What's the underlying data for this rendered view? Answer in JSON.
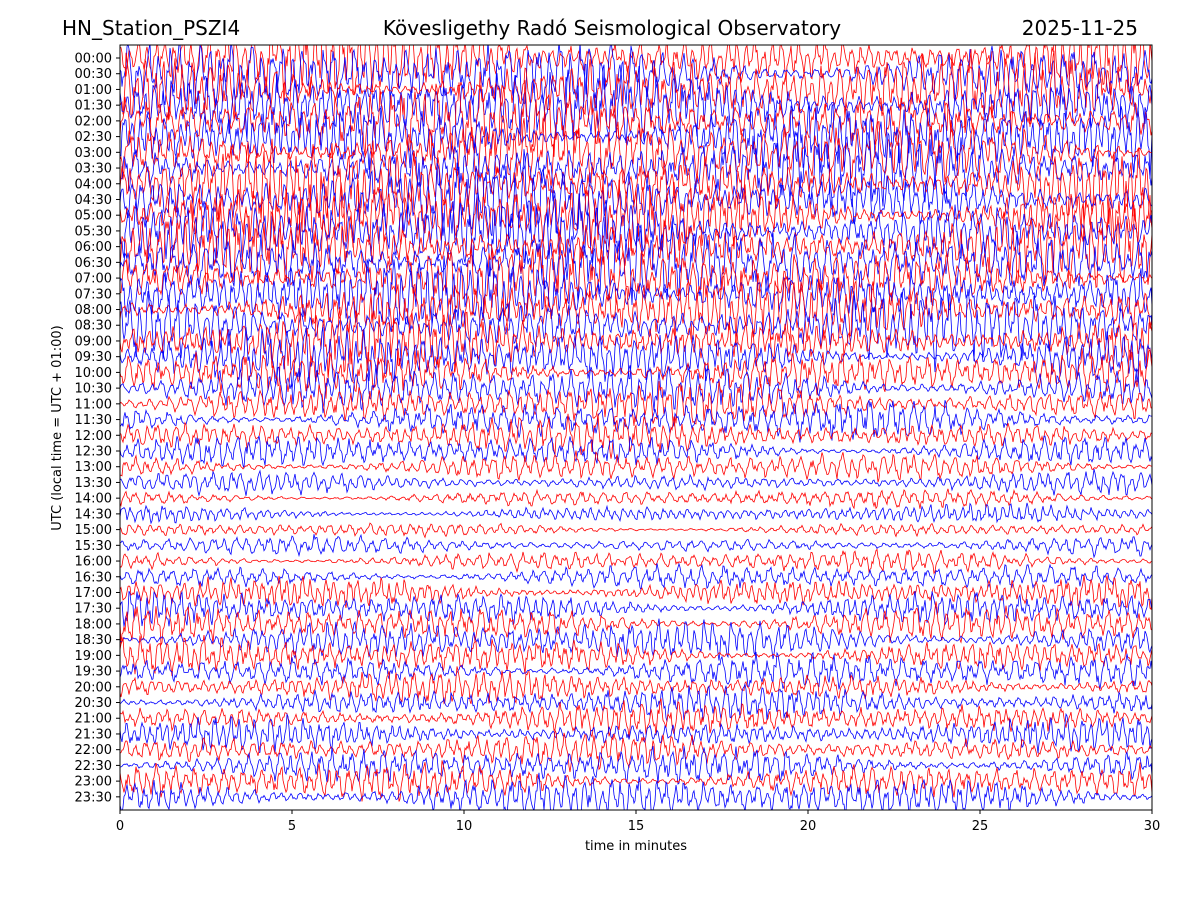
{
  "header": {
    "left": "HN_Station_PSZI4",
    "center": "Kövesligethy Radó Seismological Observatory",
    "right": "2025-11-25"
  },
  "chart_data": {
    "type": "line",
    "chart_kind": "helicorder",
    "xlabel": "time in minutes",
    "ylabel": "UTC (local time = UTC + 01:00)",
    "xlim": [
      0,
      30
    ],
    "x_ticks": [
      0,
      5,
      10,
      15,
      20,
      25,
      30
    ],
    "row_interval_minutes": 30,
    "grid": false,
    "colors": [
      "#ff0000",
      "#0000ff"
    ],
    "rows": [
      {
        "label": "00:00",
        "amplitude": 1.0
      },
      {
        "label": "00:30",
        "amplitude": 1.0
      },
      {
        "label": "01:00",
        "amplitude": 1.0
      },
      {
        "label": "01:30",
        "amplitude": 1.0
      },
      {
        "label": "02:00",
        "amplitude": 1.0
      },
      {
        "label": "02:30",
        "amplitude": 1.0
      },
      {
        "label": "03:00",
        "amplitude": 1.0
      },
      {
        "label": "03:30",
        "amplitude": 1.0
      },
      {
        "label": "04:00",
        "amplitude": 1.0
      },
      {
        "label": "04:30",
        "amplitude": 1.0
      },
      {
        "label": "05:00",
        "amplitude": 1.0
      },
      {
        "label": "05:30",
        "amplitude": 1.0
      },
      {
        "label": "06:00",
        "amplitude": 1.0
      },
      {
        "label": "06:30",
        "amplitude": 1.0
      },
      {
        "label": "07:00",
        "amplitude": 0.95
      },
      {
        "label": "07:30",
        "amplitude": 0.95
      },
      {
        "label": "08:00",
        "amplitude": 0.9
      },
      {
        "label": "08:30",
        "amplitude": 0.9
      },
      {
        "label": "09:00",
        "amplitude": 0.8
      },
      {
        "label": "09:30",
        "amplitude": 0.75
      },
      {
        "label": "10:00",
        "amplitude": 0.7
      },
      {
        "label": "10:30",
        "amplitude": 0.65
      },
      {
        "label": "11:00",
        "amplitude": 0.6
      },
      {
        "label": "11:30",
        "amplitude": 0.55
      },
      {
        "label": "12:00",
        "amplitude": 0.5
      },
      {
        "label": "12:30",
        "amplitude": 0.45
      },
      {
        "label": "13:00",
        "amplitude": 0.4
      },
      {
        "label": "13:30",
        "amplitude": 0.3
      },
      {
        "label": "14:00",
        "amplitude": 0.25
      },
      {
        "label": "14:30",
        "amplitude": 0.25
      },
      {
        "label": "15:00",
        "amplitude": 0.2
      },
      {
        "label": "15:30",
        "amplitude": 0.25
      },
      {
        "label": "16:00",
        "amplitude": 0.3
      },
      {
        "label": "16:30",
        "amplitude": 0.35
      },
      {
        "label": "17:00",
        "amplitude": 0.45
      },
      {
        "label": "17:30",
        "amplitude": 0.5
      },
      {
        "label": "18:00",
        "amplitude": 0.55
      },
      {
        "label": "18:30",
        "amplitude": 0.55
      },
      {
        "label": "19:00",
        "amplitude": 0.5
      },
      {
        "label": "19:30",
        "amplitude": 0.5
      },
      {
        "label": "20:00",
        "amplitude": 0.45
      },
      {
        "label": "20:30",
        "amplitude": 0.45
      },
      {
        "label": "21:00",
        "amplitude": 0.45
      },
      {
        "label": "21:30",
        "amplitude": 0.45
      },
      {
        "label": "22:00",
        "amplitude": 0.45
      },
      {
        "label": "22:30",
        "amplitude": 0.5
      },
      {
        "label": "23:00",
        "amplitude": 0.55
      },
      {
        "label": "23:30",
        "amplitude": 0.6
      }
    ]
  }
}
